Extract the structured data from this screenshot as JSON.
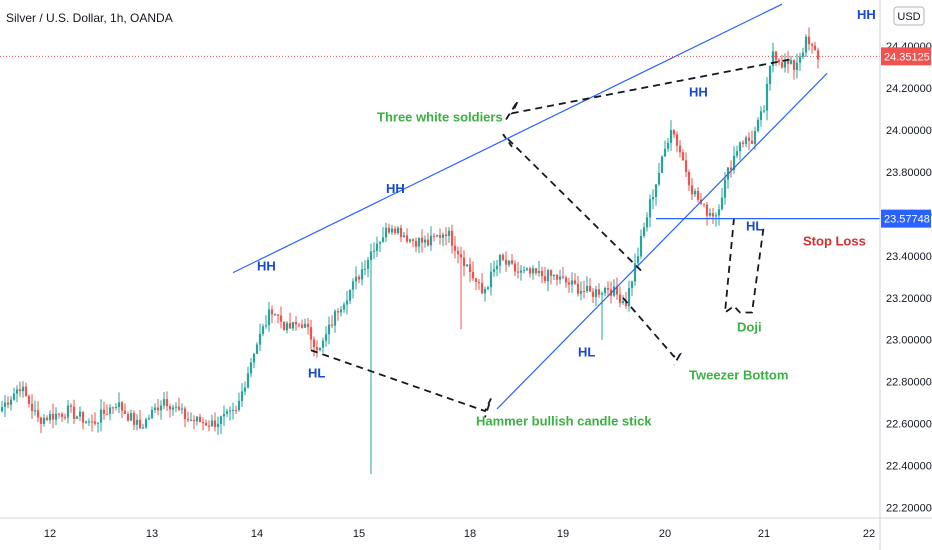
{
  "header": {
    "title": "Silver / U.S. Dollar, 1h, OANDA",
    "currency_badge": "USD"
  },
  "colors": {
    "up": "#26a69a",
    "down": "#ef5350",
    "trendline": "#2962ff",
    "label_blue": "#1848cc",
    "label_green": "#3cb043",
    "label_red": "#d32f2f",
    "current_tag": "#ef5350",
    "stop_tag": "#2962ff"
  },
  "chart_data": {
    "type": "candlestick",
    "title": "Silver / U.S. Dollar, 1h, OANDA",
    "x_tick_labels": [
      "12",
      "13",
      "14",
      "15",
      "18",
      "19",
      "20",
      "21",
      "22"
    ],
    "y_tick_labels": [
      "24.40000",
      "24.20000",
      "24.00000",
      "23.80000",
      "23.60000",
      "23.40000",
      "23.20000",
      "23.00000",
      "22.80000",
      "22.60000",
      "22.40000",
      "22.20000"
    ],
    "ylim": [
      22.15,
      24.62
    ],
    "y_ticks": [
      24.4,
      24.2,
      24.0,
      23.8,
      23.6,
      23.4,
      23.2,
      23.0,
      22.8,
      22.6,
      22.4,
      22.2
    ],
    "grid": false,
    "current_price": {
      "value": 24.35125,
      "label": "24.35125"
    },
    "stop_loss_level": {
      "value": 23.57748,
      "label": "23.57748"
    },
    "candle_anchors": [
      [
        0,
        22.68
      ],
      [
        6,
        22.78
      ],
      [
        12,
        22.62
      ],
      [
        22,
        22.66
      ],
      [
        30,
        22.6
      ],
      [
        38,
        22.7
      ],
      [
        46,
        22.58
      ],
      [
        54,
        22.72
      ],
      [
        62,
        22.62
      ],
      [
        70,
        22.6
      ],
      [
        78,
        22.65
      ],
      [
        84,
        22.95
      ],
      [
        90,
        23.15
      ],
      [
        95,
        23.05
      ],
      [
        100,
        23.08
      ],
      [
        106,
        22.95
      ],
      [
        112,
        23.15
      ],
      [
        118,
        23.28
      ],
      [
        124,
        23.45
      ],
      [
        130,
        23.55
      ],
      [
        136,
        23.48
      ],
      [
        142,
        23.46
      ],
      [
        148,
        23.52
      ],
      [
        154,
        23.38
      ],
      [
        160,
        23.22
      ],
      [
        166,
        23.38
      ],
      [
        172,
        23.32
      ],
      [
        178,
        23.31
      ],
      [
        184,
        23.3
      ],
      [
        190,
        23.26
      ],
      [
        196,
        23.22
      ],
      [
        202,
        23.25
      ],
      [
        208,
        23.18
      ],
      [
        211,
        23.35
      ],
      [
        216,
        23.65
      ],
      [
        220,
        23.85
      ],
      [
        223,
        24.02
      ],
      [
        226,
        23.9
      ],
      [
        230,
        23.72
      ],
      [
        234,
        23.62
      ],
      [
        238,
        23.6
      ],
      [
        242,
        23.8
      ],
      [
        246,
        23.95
      ],
      [
        250,
        23.95
      ],
      [
        254,
        24.1
      ],
      [
        257,
        24.38
      ],
      [
        260,
        24.32
      ],
      [
        264,
        24.3
      ],
      [
        268,
        24.42
      ],
      [
        272,
        24.35
      ]
    ],
    "swing_lows": [
      [
        123,
        22.36
      ],
      [
        153,
        23.05
      ],
      [
        200,
        23.0
      ]
    ],
    "trendlines": [
      {
        "from": [
          77,
          23.32
        ],
        "to": [
          260,
          24.6
        ]
      },
      {
        "from": [
          165,
          22.67
        ],
        "to": [
          275,
          24.27
        ]
      }
    ],
    "dashed_paths": [
      [
        [
          103,
          22.95
        ],
        [
          161,
          22.66
        ],
        [
          163,
          22.72
        ],
        [
          161,
          22.63
        ]
      ],
      [
        [
          213,
          23.33
        ],
        [
          167,
          23.98
        ],
        [
          170,
          23.92
        ]
      ],
      [
        [
          168,
          24.05
        ],
        [
          172,
          24.14
        ],
        [
          170,
          24.08
        ],
        [
          264,
          24.34
        ]
      ],
      [
        [
          207,
          23.2
        ],
        [
          224,
          22.92
        ],
        [
          226,
          22.93
        ],
        [
          224,
          22.88
        ]
      ],
      [
        [
          244,
          23.58
        ],
        [
          241,
          23.13
        ],
        [
          244,
          23.16
        ],
        [
          246,
          23.13
        ],
        [
          250,
          23.13
        ],
        [
          254,
          23.55
        ]
      ]
    ],
    "annotations": [
      {
        "text": "HH",
        "color": "blue",
        "at": [
          85,
          23.33
        ]
      },
      {
        "text": "HH",
        "color": "blue",
        "at": [
          128,
          23.7
        ]
      },
      {
        "text": "HH",
        "color": "blue",
        "at": [
          229,
          24.16
        ]
      },
      {
        "text": "HH",
        "color": "blue",
        "at": [
          285,
          24.53
        ]
      },
      {
        "text": "HL",
        "color": "blue",
        "at": [
          102,
          22.82
        ]
      },
      {
        "text": "HL",
        "color": "blue",
        "at": [
          192,
          22.92
        ]
      },
      {
        "text": "HL",
        "color": "blue",
        "at": [
          248,
          23.52
        ]
      },
      {
        "text": "Three white soldiers",
        "color": "green",
        "at": [
          125,
          24.04
        ]
      },
      {
        "text": "Hammer bullish candle stick",
        "color": "green",
        "at": [
          158,
          22.59
        ]
      },
      {
        "text": "Tweezer Bottom",
        "color": "green",
        "at": [
          229,
          22.81
        ]
      },
      {
        "text": "Doji",
        "color": "green",
        "at": [
          245,
          23.04
        ]
      },
      {
        "text": "Stop Loss",
        "color": "red",
        "at": [
          267,
          23.45
        ]
      }
    ]
  }
}
